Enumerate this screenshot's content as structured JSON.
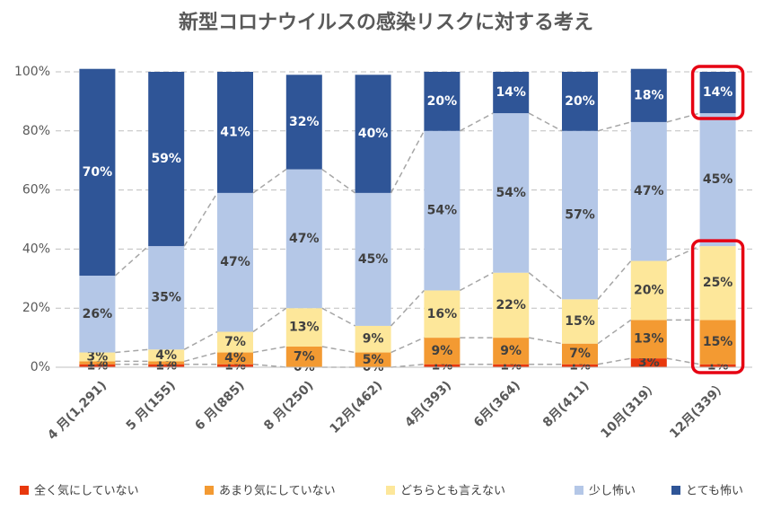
{
  "chart_data": {
    "type": "stacked-bar",
    "title": "新型コロナウイルスの感染リスクに対する考え",
    "categories": [
      "4 月(1,291)",
      "5 月(155)",
      "6 月(885)",
      "8 月(250)",
      "12月(462)",
      "4月(393)",
      "6月(364)",
      "8月(411)",
      "10月(319）",
      "12月(339）"
    ],
    "series": [
      {
        "name": "全く気にしていない",
        "color": "#e8380d",
        "values": [
          1,
          1,
          1,
          0,
          0,
          1,
          1,
          1,
          3,
          1
        ],
        "value_labels": [
          "1%",
          "1%",
          "1%",
          "0%",
          "0%",
          "1%",
          "1%",
          "1%",
          "3%",
          "1%"
        ]
      },
      {
        "name": "あまり気にしていない",
        "color": "#f39a32",
        "values": [
          1,
          1,
          4,
          7,
          5,
          9,
          9,
          7,
          13,
          15
        ],
        "value_labels": [
          "1%",
          "1%",
          "4%",
          "7%",
          "5%",
          "9%",
          "9%",
          "7%",
          "13%",
          "15%"
        ]
      },
      {
        "name": "どちらとも言えない",
        "color": "#fde79a",
        "values": [
          3,
          4,
          7,
          13,
          9,
          16,
          22,
          15,
          20,
          25
        ],
        "value_labels": [
          "3%",
          "4%",
          "7%",
          "13%",
          "9%",
          "16%",
          "22%",
          "15%",
          "20%",
          "25%"
        ]
      },
      {
        "name": "少し怖い",
        "color": "#b4c7e7",
        "values": [
          26,
          35,
          47,
          47,
          45,
          54,
          54,
          57,
          47,
          45
        ],
        "value_labels": [
          "26%",
          "35%",
          "47%",
          "47%",
          "45%",
          "54%",
          "54%",
          "57%",
          "47%",
          "45%"
        ]
      },
      {
        "name": "とても怖い",
        "color": "#2f5597",
        "values": [
          70,
          59,
          41,
          32,
          40,
          20,
          14,
          20,
          18,
          14
        ],
        "value_labels": [
          "70%",
          "59%",
          "41%",
          "32%",
          "40%",
          "20%",
          "14%",
          "20%",
          "18%",
          "14%"
        ]
      }
    ],
    "ylim": [
      0,
      100
    ],
    "yticks": [
      {
        "value": 0,
        "label": "0%"
      },
      {
        "value": 20,
        "label": "20%"
      },
      {
        "value": 40,
        "label": "40%"
      },
      {
        "value": 60,
        "label": "60%"
      },
      {
        "value": 80,
        "label": "80%"
      },
      {
        "value": 100,
        "label": "100%"
      }
    ],
    "grid": true
  }
}
